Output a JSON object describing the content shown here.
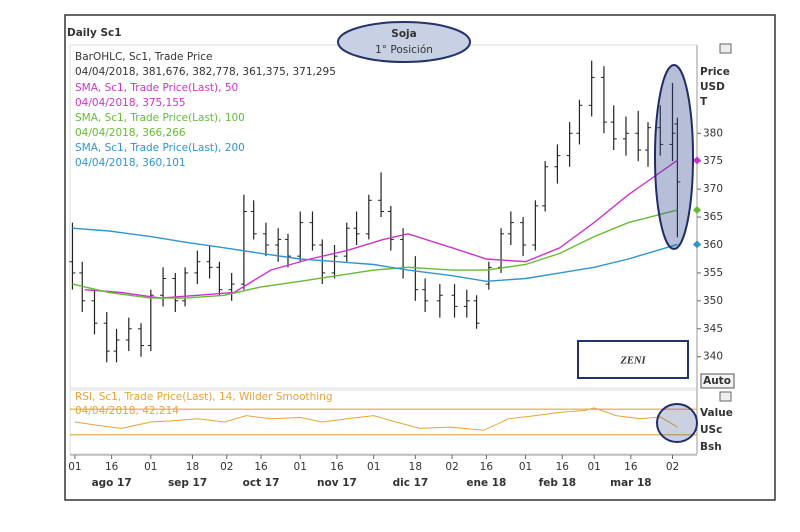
{
  "chart_data": [
    {
      "type": "ohlc",
      "title": "Daily Sc1",
      "annotation": [
        "Soja",
        "1° Posición"
      ],
      "logo": "ZENI",
      "button": "Auto",
      "y_label": [
        "Price",
        "USD",
        "T"
      ],
      "ohlc_name": "BarOHLC, Sc1, Trade Price",
      "ohlc_last": "04/04/2018, 381,676, 382,778, 361,375, 371,295",
      "color": "#222222",
      "x": [
        "2017-07-31",
        "2017-08-04",
        "2017-08-09",
        "2017-08-14",
        "2017-08-18",
        "2017-08-23",
        "2017-08-28",
        "2017-09-01",
        "2017-09-06",
        "2017-09-11",
        "2017-09-15",
        "2017-09-20",
        "2017-09-25",
        "2017-09-29",
        "2017-10-04",
        "2017-10-09",
        "2017-10-13",
        "2017-10-18",
        "2017-10-23",
        "2017-10-27",
        "2017-11-01",
        "2017-11-06",
        "2017-11-10",
        "2017-11-15",
        "2017-11-20",
        "2017-11-24",
        "2017-11-29",
        "2017-12-04",
        "2017-12-08",
        "2017-12-13",
        "2017-12-18",
        "2017-12-22",
        "2017-12-28",
        "2018-01-03",
        "2018-01-08",
        "2018-01-12",
        "2018-01-17",
        "2018-01-22",
        "2018-01-26",
        "2018-01-31",
        "2018-02-05",
        "2018-02-09",
        "2018-02-14",
        "2018-02-19",
        "2018-02-23",
        "2018-02-28",
        "2018-03-05",
        "2018-03-09",
        "2018-03-14",
        "2018-03-19",
        "2018-03-23",
        "2018-03-28",
        "2018-04-02",
        "2018-04-04"
      ],
      "open": [
        357,
        355,
        350,
        346,
        341,
        343,
        345,
        342,
        351,
        354,
        350,
        355,
        357,
        356,
        352,
        353,
        366,
        362,
        360,
        361,
        358,
        364,
        360,
        355,
        358,
        363,
        362,
        368,
        366,
        361,
        356,
        352,
        350,
        351,
        349,
        350,
        353,
        356,
        362,
        364,
        360,
        367,
        374,
        376,
        380,
        385,
        390,
        382,
        379,
        380,
        377,
        381,
        378,
        381.676
      ],
      "high": [
        364,
        357,
        352,
        348,
        345,
        347,
        346,
        352,
        356,
        355,
        356,
        359,
        360,
        357,
        355,
        369,
        368,
        364,
        363,
        362,
        366,
        366,
        361,
        360,
        364,
        366,
        369,
        373,
        367,
        363,
        358,
        354,
        353,
        353,
        352,
        351,
        357,
        363,
        366,
        365,
        368,
        375,
        378,
        382,
        386,
        393,
        392,
        385,
        383,
        384,
        382,
        385,
        389,
        382.778
      ],
      "low": [
        352,
        348,
        344,
        339,
        339,
        341,
        340,
        341,
        349,
        348,
        349,
        353,
        354,
        351,
        350,
        352,
        361,
        358,
        357,
        356,
        357,
        359,
        353,
        354,
        357,
        360,
        361,
        365,
        359,
        354,
        350,
        348,
        347,
        347,
        347,
        345,
        352,
        355,
        360,
        358,
        359,
        366,
        371,
        374,
        378,
        383,
        380,
        377,
        376,
        375,
        374,
        376,
        375,
        361.375
      ],
      "close": [
        355,
        350,
        346,
        341,
        343,
        345,
        342,
        351,
        354,
        350,
        355,
        357,
        356,
        352,
        353,
        366,
        362,
        360,
        361,
        358,
        364,
        360,
        355,
        358,
        363,
        362,
        368,
        366,
        361,
        356,
        352,
        350,
        351,
        349,
        350,
        346,
        356,
        362,
        364,
        360,
        367,
        374,
        376,
        380,
        385,
        390,
        382,
        379,
        380,
        377,
        381,
        378,
        380,
        371.295
      ],
      "series": [
        {
          "name": "SMA, Sc1, Trade Price(Last),  50",
          "last_label": "04/04/2018, 375,155",
          "color": "#cc33cc",
          "x": [
            "2017-08-05",
            "2017-08-20",
            "2017-09-05",
            "2017-09-20",
            "2017-10-05",
            "2017-10-20",
            "2017-11-05",
            "2017-11-20",
            "2017-12-05",
            "2017-12-15",
            "2018-01-02",
            "2018-01-16",
            "2018-02-01",
            "2018-02-15",
            "2018-03-01",
            "2018-03-15",
            "2018-04-04"
          ],
          "values": [
            352,
            351.5,
            350.5,
            351,
            351.5,
            355.5,
            357.5,
            359,
            361,
            362,
            359.5,
            357.5,
            357,
            359.5,
            364,
            369,
            375.155
          ]
        },
        {
          "name": "SMA, Sc1, Trade Price(Last),  100",
          "last_label": "04/04/2018, 366,266",
          "color": "#66bb33",
          "x": [
            "2017-07-31",
            "2017-08-15",
            "2017-09-01",
            "2017-09-15",
            "2017-10-01",
            "2017-10-16",
            "2017-11-01",
            "2017-11-16",
            "2017-12-01",
            "2017-12-15",
            "2018-01-02",
            "2018-01-16",
            "2018-02-01",
            "2018-02-15",
            "2018-03-01",
            "2018-03-15",
            "2018-04-04"
          ],
          "values": [
            353,
            351.5,
            350.5,
            350.5,
            351,
            352.5,
            353.5,
            354.5,
            355.5,
            356,
            355.5,
            355.5,
            356.5,
            358.5,
            361.5,
            364,
            366.266
          ]
        },
        {
          "name": "SMA, Sc1, Trade Price(Last),  200",
          "last_label": "04/04/2018, 360,101",
          "color": "#2f95d0",
          "x": [
            "2017-07-31",
            "2017-08-15",
            "2017-09-01",
            "2017-09-15",
            "2017-10-01",
            "2017-10-16",
            "2017-11-01",
            "2017-11-16",
            "2017-12-01",
            "2017-12-15",
            "2018-01-02",
            "2018-01-16",
            "2018-02-01",
            "2018-02-15",
            "2018-03-01",
            "2018-03-15",
            "2018-04-04"
          ],
          "values": [
            363,
            362.5,
            361.5,
            360.5,
            359.5,
            358.5,
            357.5,
            357,
            356.5,
            355.5,
            354.5,
            353.5,
            354,
            355,
            356,
            357.5,
            360.101
          ]
        }
      ],
      "xlim": [
        "2017-07-30",
        "2018-04-12"
      ],
      "ylim": [
        334.4,
        395.8
      ],
      "yticks": [
        340,
        345,
        350,
        355,
        360,
        365,
        370,
        375,
        380
      ],
      "xticks": [
        {
          "value": "2017-08-01",
          "label": "01"
        },
        {
          "value": "2017-08-16",
          "label": "16"
        },
        {
          "value": "2017-09-01",
          "label": "01"
        },
        {
          "value": "2017-09-18",
          "label": "18"
        },
        {
          "value": "2017-10-02",
          "label": "02"
        },
        {
          "value": "2017-10-16",
          "label": "16"
        },
        {
          "value": "2017-11-01",
          "label": "01"
        },
        {
          "value": "2017-11-16",
          "label": "16"
        },
        {
          "value": "2017-12-01",
          "label": "01"
        },
        {
          "value": "2017-12-18",
          "label": "18"
        },
        {
          "value": "2018-01-02",
          "label": "02"
        },
        {
          "value": "2018-01-16",
          "label": "16"
        },
        {
          "value": "2018-02-01",
          "label": "01"
        },
        {
          "value": "2018-02-16",
          "label": "16"
        },
        {
          "value": "2018-03-01",
          "label": "01"
        },
        {
          "value": "2018-03-16",
          "label": "16"
        },
        {
          "value": "2018-04-02",
          "label": "02"
        }
      ],
      "month_labels": [
        {
          "value": "2017-08-16",
          "label": "ago 17"
        },
        {
          "value": "2017-09-16",
          "label": "sep 17"
        },
        {
          "value": "2017-10-16",
          "label": "oct 17"
        },
        {
          "value": "2017-11-16",
          "label": "nov 17"
        },
        {
          "value": "2017-12-16",
          "label": "dic 17"
        },
        {
          "value": "2018-01-16",
          "label": "ene 18"
        },
        {
          "value": "2018-02-14",
          "label": "feb 18"
        },
        {
          "value": "2018-03-16",
          "label": "mar 18"
        }
      ]
    },
    {
      "type": "line",
      "title": "RSI, Sc1, Trade Price(Last), 14, Wilder Smoothing",
      "last_label": "04/04/2018, 42,214",
      "color": "#e8a33a",
      "y_label": [
        "Value",
        "USc",
        "Bsh"
      ],
      "x": [
        "2017-08-01",
        "2017-08-10",
        "2017-08-20",
        "2017-09-01",
        "2017-09-10",
        "2017-09-20",
        "2017-10-01",
        "2017-10-10",
        "2017-10-20",
        "2017-11-01",
        "2017-11-10",
        "2017-11-20",
        "2017-12-01",
        "2017-12-10",
        "2017-12-20",
        "2018-01-01",
        "2018-01-15",
        "2018-01-25",
        "2018-02-05",
        "2018-02-15",
        "2018-02-25",
        "2018-03-01",
        "2018-03-10",
        "2018-03-20",
        "2018-03-28",
        "2018-04-04"
      ],
      "values": [
        50,
        45,
        40,
        50,
        52,
        55,
        50,
        60,
        55,
        57,
        50,
        55,
        60,
        50,
        40,
        42,
        37,
        55,
        60,
        65,
        68,
        72,
        60,
        55,
        58,
        42.214
      ],
      "levels": [
        30,
        70
      ],
      "xlim": [
        "2017-07-30",
        "2018-04-12"
      ],
      "ylim": [
        0,
        100
      ]
    }
  ]
}
